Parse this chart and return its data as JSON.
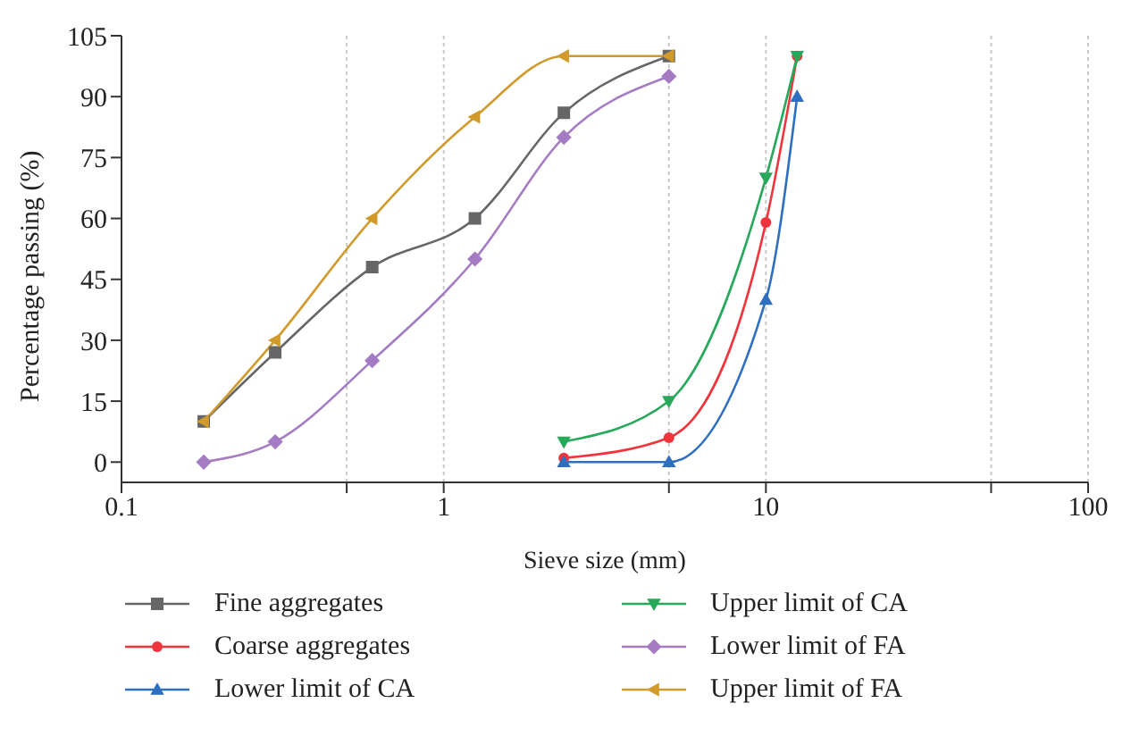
{
  "chart_data": {
    "type": "line",
    "xlabel": "Sieve size (mm)",
    "ylabel": "Percentage passing (%)",
    "log": "x",
    "xlim": [
      0.1,
      100
    ],
    "xticks": [
      0.1,
      {
        "value": 0.5,
        "label": null
      },
      1,
      {
        "value": 5,
        "label": null
      },
      10,
      {
        "value": 50,
        "label": null
      },
      100
    ],
    "ylim": [
      -5,
      105
    ],
    "yticks": [
      0,
      15,
      30,
      45,
      60,
      75,
      90,
      105
    ],
    "grid": "x",
    "legend": "bottom",
    "series": [
      {
        "name": "Fine aggregates",
        "color": "#666666",
        "marker": "square",
        "x": [
          0.18,
          0.3,
          0.6,
          1.25,
          2.36,
          5
        ],
        "values": [
          10,
          27,
          48,
          60,
          86,
          100
        ]
      },
      {
        "name": "Coarse aggregates",
        "color": "#f0343c",
        "marker": "circle",
        "x": [
          2.36,
          5,
          10,
          12.5
        ],
        "values": [
          1,
          6,
          59,
          100
        ]
      },
      {
        "name": "Lower limit of CA",
        "color": "#2f6fbf",
        "marker": "triangle",
        "x": [
          2.36,
          5,
          10,
          12.5
        ],
        "values": [
          0,
          0,
          40,
          90
        ]
      },
      {
        "name": "Upper limit of CA",
        "color": "#27a85a",
        "marker": "triangle-down",
        "x": [
          2.36,
          5,
          10,
          12.5
        ],
        "values": [
          5,
          15,
          70,
          100
        ]
      },
      {
        "name": "Lower limit of FA",
        "color": "#a57cc4",
        "marker": "diamond",
        "x": [
          0.18,
          0.3,
          0.6,
          1.25,
          2.36,
          5
        ],
        "values": [
          0,
          5,
          25,
          50,
          80,
          95
        ]
      },
      {
        "name": "Upper limit of FA",
        "color": "#d09a2c",
        "marker": "triangle-left",
        "x": [
          0.18,
          0.3,
          0.6,
          1.25,
          2.36,
          5
        ],
        "values": [
          10,
          30,
          60,
          85,
          100,
          100
        ]
      }
    ]
  }
}
